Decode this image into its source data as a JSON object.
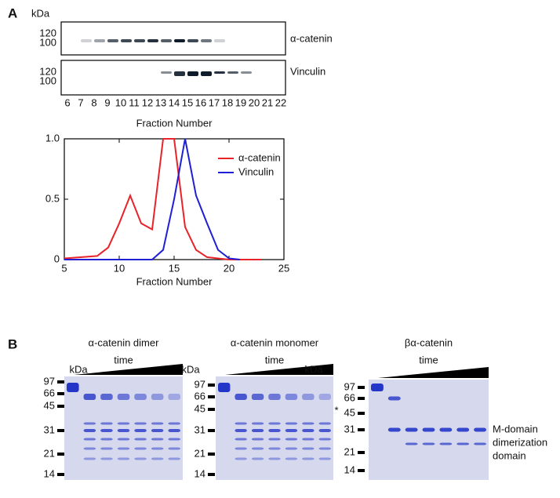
{
  "panel_labels": [
    "A",
    "B"
  ],
  "blots": {
    "kda": "kDa",
    "rows": [
      {
        "name": "α-catenin",
        "markers": [
          "120",
          "100"
        ]
      },
      {
        "name": "Vinculin",
        "markers": [
          "120",
          "100"
        ]
      }
    ],
    "fractions": [
      "6",
      "7",
      "8",
      "9",
      "10",
      "11",
      "12",
      "13",
      "14",
      "15",
      "16",
      "17",
      "18",
      "19",
      "20",
      "21",
      "22"
    ],
    "axis_label": "Fraction Number"
  },
  "chart_data": {
    "type": "line",
    "x_label": "Fraction Number",
    "x": [
      5,
      8,
      9,
      10,
      11,
      12,
      13,
      14,
      15,
      16,
      17,
      18,
      19,
      20,
      21,
      23
    ],
    "series": [
      {
        "name": "α-catenin",
        "color": "#e8232a",
        "values": [
          0.01,
          0.03,
          0.1,
          0.3,
          0.53,
          0.3,
          0.25,
          1,
          1,
          0.27,
          0.08,
          0.02,
          0.01,
          0,
          0,
          0
        ]
      },
      {
        "name": "Vinculin",
        "color": "#1f1fd6",
        "values": [
          0,
          0,
          0,
          0,
          0,
          0,
          0,
          0.08,
          0.5,
          1,
          0.53,
          0.3,
          0.08,
          0.01,
          0,
          null
        ]
      }
    ],
    "xlim": [
      5,
      25
    ],
    "ylim": [
      0,
      1
    ],
    "xticks": [
      5,
      10,
      15,
      20,
      25
    ],
    "yticks": [
      0,
      0.5,
      {
        "value": 1,
        "label": "1.0"
      }
    ],
    "legend": "upper right"
  },
  "gels": [
    {
      "title": "α-catenin dimer",
      "time": "time",
      "kda": "kDa",
      "markers": [
        "97",
        "66",
        "45",
        "31",
        "21",
        "14"
      ]
    },
    {
      "title": "α-catenin monomer",
      "time": "time",
      "kda": "kDa",
      "markers": [
        "97",
        "66",
        "45",
        "31",
        "21",
        "14"
      ],
      "note": "*"
    },
    {
      "title": "βα-catenin",
      "time": "time",
      "kda": "kDa",
      "markers": [
        "97",
        "66",
        "45",
        "31",
        "21",
        "14"
      ],
      "annotations": [
        "M-domain",
        "dimerization",
        "domain"
      ]
    }
  ]
}
